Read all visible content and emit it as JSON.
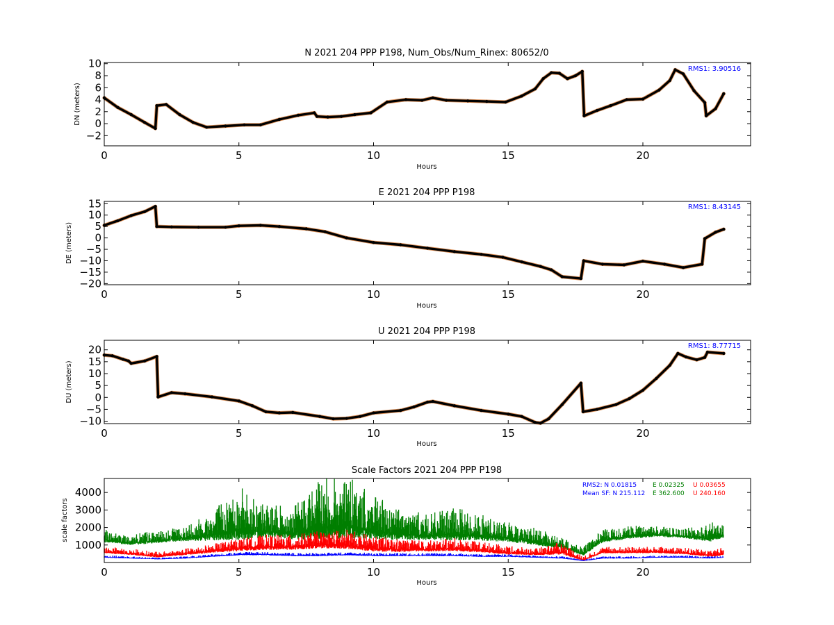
{
  "chart_data": [
    {
      "type": "scatter",
      "title": "N 2021 204 PPP  P198, Num_Obs/Num_Rinex: 80652/0",
      "xlabel": "Hours",
      "ylabel": "DN (meters)",
      "xlim": [
        0,
        24
      ],
      "ylim": [
        -3.7,
        10.2
      ],
      "xticks": [
        0,
        5,
        10,
        15,
        20
      ],
      "yticks": [
        -2,
        0,
        2,
        4,
        6,
        8,
        10
      ],
      "annotation": "RMS1:  3.90516",
      "annotation_color": "#0000ff",
      "series": [
        {
          "color": "#000000",
          "x": [
            0,
            0.5,
            1.0,
            1.5,
            1.9,
            1.95,
            2.3,
            2.8,
            3.3,
            3.8,
            4.5,
            5.2,
            5.8,
            6.5,
            7.2,
            7.8,
            7.9,
            8.3,
            8.8,
            9.3,
            9.9,
            10.5,
            11.2,
            11.8,
            12.2,
            12.7,
            13.5,
            14.2,
            14.9,
            15.5,
            16.0,
            16.3,
            16.6,
            16.9,
            17.2,
            17.5,
            17.75,
            17.82,
            18.3,
            18.8,
            19.4,
            20.0,
            20.6,
            21.0,
            21.2,
            21.5,
            21.9,
            22.3,
            22.35,
            22.7,
            23.0
          ],
          "y": [
            4.3,
            2.7,
            1.5,
            0.2,
            -0.8,
            3.0,
            3.2,
            1.5,
            0.2,
            -0.6,
            -0.4,
            -0.2,
            -0.2,
            0.7,
            1.4,
            1.8,
            1.2,
            1.1,
            1.2,
            1.5,
            1.8,
            3.6,
            4.0,
            3.9,
            4.3,
            3.9,
            3.8,
            3.7,
            3.6,
            4.6,
            5.8,
            7.5,
            8.5,
            8.4,
            7.5,
            8.0,
            8.7,
            1.3,
            2.2,
            3.0,
            4.0,
            4.1,
            5.6,
            7.2,
            9.0,
            8.3,
            5.5,
            3.5,
            1.3,
            2.5,
            5.0
          ]
        }
      ]
    },
    {
      "type": "scatter",
      "title": "E 2021 204 PPP  P198",
      "xlabel": "Hours",
      "ylabel": "DE (meters)",
      "xlim": [
        0,
        24
      ],
      "ylim": [
        -20.5,
        16
      ],
      "xticks": [
        0,
        5,
        10,
        15,
        20
      ],
      "yticks": [
        -20,
        -15,
        -10,
        -5,
        0,
        5,
        10,
        15
      ],
      "annotation": "RMS1:  8.43145",
      "annotation_color": "#0000ff",
      "series": [
        {
          "color": "#000000",
          "x": [
            0,
            0.5,
            1.0,
            1.5,
            1.9,
            1.95,
            2.5,
            3.5,
            4.5,
            5.0,
            5.8,
            6.5,
            7.5,
            8.2,
            9.0,
            10.0,
            11.0,
            12.0,
            13.0,
            14.0,
            14.8,
            15.5,
            16.2,
            16.6,
            17.0,
            17.7,
            17.8,
            18.5,
            19.3,
            20.0,
            20.8,
            21.5,
            22.2,
            22.3,
            22.7,
            23.0
          ],
          "y": [
            5.5,
            7.5,
            9.8,
            11.5,
            13.8,
            5.0,
            4.8,
            4.7,
            4.7,
            5.3,
            5.5,
            5.0,
            4.0,
            2.7,
            0,
            -2.0,
            -3.0,
            -4.5,
            -6.0,
            -7.2,
            -8.5,
            -10.5,
            -12.5,
            -14.0,
            -17.0,
            -17.8,
            -10.0,
            -11.5,
            -11.8,
            -10.2,
            -11.5,
            -13.0,
            -11.5,
            -0.3,
            2.5,
            3.8
          ]
        }
      ]
    },
    {
      "type": "scatter",
      "title": "U 2021 204 PPP  P198",
      "xlabel": "Hours",
      "ylabel": "DU (meters)",
      "xlim": [
        0,
        24
      ],
      "ylim": [
        -11,
        24
      ],
      "xticks": [
        0,
        5,
        10,
        15,
        20
      ],
      "yticks": [
        -10,
        -5,
        0,
        5,
        10,
        15,
        20
      ],
      "annotation": "RMS1:  8.77715",
      "annotation_color": "#0000ff",
      "series": [
        {
          "color": "#000000",
          "x": [
            0,
            0.3,
            0.7,
            0.9,
            1.0,
            1.5,
            1.95,
            2.0,
            2.5,
            3.0,
            4.0,
            5.0,
            5.5,
            6.0,
            6.5,
            7.0,
            8.0,
            8.5,
            9.0,
            9.5,
            10.0,
            11.0,
            11.5,
            12.0,
            12.2,
            13.0,
            14.0,
            15.0,
            15.5,
            16.0,
            16.2,
            16.5,
            17.0,
            17.7,
            17.78,
            18.3,
            19.0,
            19.5,
            20.0,
            20.5,
            21.0,
            21.3,
            21.6,
            22.0,
            22.3,
            22.4,
            23.0
          ],
          "y": [
            17.8,
            17.5,
            16.0,
            15.3,
            14.3,
            15.3,
            17.2,
            0.2,
            2.0,
            1.5,
            0.2,
            -1.5,
            -3.5,
            -6.0,
            -6.5,
            -6.3,
            -8.0,
            -9.0,
            -8.8,
            -8.0,
            -6.5,
            -5.5,
            -4.0,
            -2.0,
            -1.7,
            -3.5,
            -5.5,
            -7.0,
            -8.0,
            -10.5,
            -10.8,
            -9.0,
            -3.0,
            6.0,
            -6.0,
            -5.0,
            -3.0,
            -0.5,
            3.0,
            8.0,
            13.5,
            18.5,
            17.0,
            15.8,
            16.8,
            19.0,
            18.5
          ]
        }
      ]
    },
    {
      "type": "scatter",
      "title": "Scale Factors 2021 204 PPP  P198",
      "xlabel": "Hours",
      "ylabel": "scale factors",
      "xlim": [
        0,
        24
      ],
      "ylim": [
        0,
        4800
      ],
      "xticks": [
        0,
        5,
        10,
        15,
        20
      ],
      "yticks": [
        1000,
        2000,
        3000,
        4000
      ],
      "annotations": [
        {
          "text": "RMS2: N  0.01815",
          "color": "#0000ff"
        },
        {
          "text": "E  0.02325",
          "color": "#007f00"
        },
        {
          "text": "U  0.03655",
          "color": "#ff0000"
        },
        {
          "text": "Mean SF: N 215.112",
          "color": "#0000ff"
        },
        {
          "text": "E 362.600",
          "color": "#007f00"
        },
        {
          "text": "U 240.160",
          "color": "#ff0000"
        }
      ],
      "series": [
        {
          "color": "#007f00",
          "x": [
            0,
            1.0,
            1.5,
            2.0,
            3.0,
            4.0,
            5.0,
            6.0,
            7.0,
            8.0,
            9.0,
            10.0,
            11.0,
            12.0,
            13.0,
            14.0,
            15.0,
            16.0,
            17.0,
            17.8,
            18.5,
            19.5,
            20.5,
            21.5,
            22.5,
            23.0
          ],
          "y": [
            1300,
            1100,
            1200,
            1250,
            1400,
            1600,
            1900,
            1800,
            1700,
            2000,
            2100,
            1800,
            1650,
            1550,
            1650,
            1550,
            1400,
            1200,
            900,
            500,
            1300,
            1500,
            1600,
            1500,
            1400,
            1600
          ],
          "spread": [
            600,
            400,
            600,
            500,
            700,
            1500,
            2500,
            1500,
            1500,
            2800,
            2900,
            2000,
            1500,
            1200,
            1500,
            1200,
            900,
            800,
            500,
            400,
            600,
            600,
            500,
            400,
            900,
            700
          ]
        },
        {
          "color": "#ff0000",
          "x": [
            0,
            1.0,
            2.0,
            3.0,
            4.0,
            5.0,
            6.0,
            7.0,
            8.0,
            9.0,
            10.0,
            11.0,
            12.0,
            13.0,
            14.0,
            15.0,
            16.0,
            17.0,
            17.8,
            18.5,
            19.5,
            20.5,
            21.5,
            22.5,
            23.0
          ],
          "y": [
            600,
            500,
            350,
            500,
            650,
            800,
            900,
            900,
            1000,
            1000,
            800,
            750,
            750,
            800,
            700,
            550,
            500,
            600,
            150,
            600,
            600,
            600,
            550,
            400,
            500
          ],
          "spread": [
            300,
            300,
            250,
            300,
            400,
            600,
            700,
            700,
            800,
            900,
            700,
            600,
            500,
            600,
            500,
            400,
            300,
            600,
            200,
            300,
            300,
            300,
            300,
            300,
            400
          ]
        },
        {
          "color": "#0000ff",
          "x": [
            0,
            1.0,
            2.0,
            3.0,
            4.0,
            5.0,
            6.0,
            7.0,
            8.0,
            9.0,
            10.0,
            11.0,
            12.0,
            13.0,
            14.0,
            15.0,
            16.0,
            17.0,
            17.8,
            18.5,
            19.5,
            20.5,
            21.5,
            22.5,
            23.0
          ],
          "y": [
            300,
            250,
            200,
            250,
            350,
            450,
            450,
            400,
            400,
            450,
            400,
            400,
            400,
            400,
            350,
            350,
            300,
            250,
            100,
            250,
            250,
            300,
            300,
            250,
            300
          ],
          "spread": [
            120,
            100,
            80,
            100,
            120,
            150,
            150,
            150,
            150,
            150,
            150,
            150,
            150,
            150,
            120,
            120,
            100,
            100,
            80,
            100,
            100,
            100,
            100,
            100,
            100
          ]
        }
      ]
    }
  ]
}
